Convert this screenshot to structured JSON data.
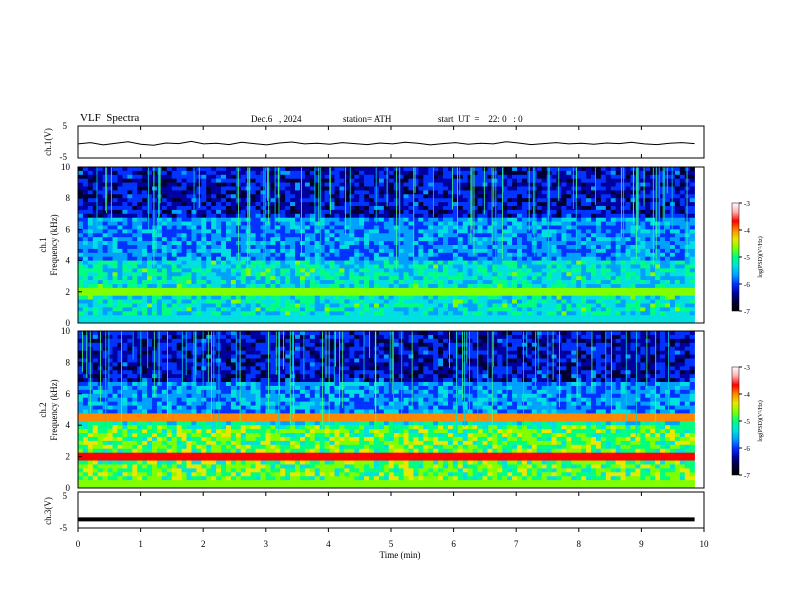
{
  "header": {
    "title": "VLF  Spectra",
    "date": "Dec.6   , 2024",
    "station": "station= ATH",
    "start": "start  UT  =    22: 0   : 0"
  },
  "colors": {
    "scale": [
      "#000000",
      "#000033",
      "#0000a0",
      "#0033ff",
      "#00a0ff",
      "#00e0e0",
      "#00ff80",
      "#80ff00",
      "#e8e800",
      "#ff8800",
      "#ff0000",
      "#ffb0b0",
      "#ffffff"
    ],
    "trace": "#000000"
  },
  "chart_data": [
    {
      "type": "line",
      "ylabel": "ch.1(V)",
      "yticks": [
        5,
        -5
      ],
      "ylim": [
        -5,
        5
      ],
      "xlim": [
        0,
        10
      ],
      "x_end": 9.85,
      "series": [
        {
          "values": [
            -0.6,
            -0.2,
            -0.9,
            -0.4,
            0.1,
            -0.7,
            -1.0,
            -0.3,
            -0.5,
            0.2,
            -0.6,
            -0.4,
            -0.8,
            -0.1,
            -0.5,
            -0.9,
            -0.3,
            0.0,
            -0.6,
            -0.4,
            -0.7,
            -0.2,
            -0.5,
            -0.8,
            -0.3,
            -0.6,
            -0.1,
            -0.4,
            -0.9,
            -0.5,
            -0.2,
            -0.7,
            -0.4,
            -0.6,
            0.1,
            -0.3,
            -0.8,
            -0.5,
            -0.2,
            -0.6,
            -0.4,
            -0.7,
            -0.3,
            -0.5,
            -0.1,
            -0.6,
            -0.8,
            -0.4,
            -0.2,
            -0.5
          ]
        }
      ]
    },
    {
      "type": "heatmap",
      "ylabel_top": "ch.1",
      "ylabel": "Frequency (kHz)",
      "yticks": [
        0,
        2,
        4,
        6,
        8,
        10
      ],
      "ylim": [
        0,
        10
      ],
      "xlim": [
        0,
        9.85
      ],
      "colorbar": {
        "ticks": [
          "-3",
          "-4",
          "-5",
          "-6",
          "-7"
        ],
        "label": "log(PSD)(V²/Hz)",
        "range": [
          -7,
          -3
        ]
      }
    },
    {
      "type": "heatmap",
      "ylabel_top": "ch.2",
      "ylabel": "Frequency (kHz)",
      "yticks": [
        0,
        2,
        4,
        6,
        8,
        10
      ],
      "ylim": [
        0,
        10
      ],
      "xlim": [
        0,
        9.85
      ],
      "colorbar": {
        "ticks": [
          "-3",
          "-4",
          "-5",
          "-6",
          "-7"
        ],
        "label": "log(PSD)(V²/Hz)",
        "range": [
          -7,
          -3
        ]
      }
    },
    {
      "type": "line",
      "ylabel": "ch.3(V)",
      "yticks": [
        5,
        -5
      ],
      "ylim": [
        -5,
        5
      ],
      "xlim": [
        0,
        10
      ],
      "x_end": 9.85,
      "series": [
        {
          "values": [
            -2.6,
            -2.6
          ]
        }
      ],
      "xlabel": "Time  (min)",
      "xticks": [
        0,
        1,
        2,
        3,
        4,
        5,
        6,
        7,
        8,
        9,
        10
      ]
    }
  ]
}
